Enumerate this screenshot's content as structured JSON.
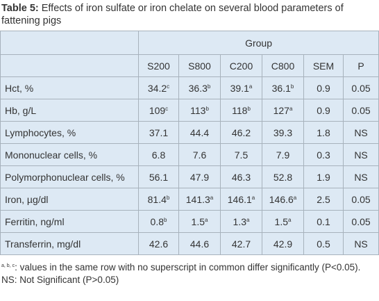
{
  "title": {
    "label": "Table 5:",
    "text": " Effects of iron sulfate or iron chelate on several blood parameters of fattening pigs"
  },
  "table": {
    "group_header": "Group",
    "columns": [
      "S200",
      "S800",
      "C200",
      "C800",
      "SEM",
      "P"
    ],
    "rows": [
      [
        "Hct, %",
        {
          "text": "34.2",
          "sup": "c"
        },
        {
          "text": "36.3",
          "sup": "b"
        },
        {
          "text": "39.1",
          "sup": "a"
        },
        {
          "text": "36.1",
          "sup": "b"
        },
        "0.9",
        "0.05"
      ],
      [
        "Hb, g/L",
        {
          "text": "109",
          "sup": "c"
        },
        {
          "text": "113",
          "sup": "b"
        },
        {
          "text": "118",
          "sup": "b"
        },
        {
          "text": "127",
          "sup": "a"
        },
        "0.9",
        "0.05"
      ],
      [
        "Lymphocytes, %",
        "37.1",
        "44.4",
        "46.2",
        "39.3",
        "1.8",
        "NS"
      ],
      [
        "Mononuclear cells, %",
        "6.8",
        "7.6",
        "7.5",
        "7.9",
        "0.3",
        "NS"
      ],
      [
        "Polymorphonuclear cells, %",
        "56.1",
        "47.9",
        "46.3",
        "52.8",
        "1.9",
        "NS"
      ],
      [
        "Iron, µg/dl",
        {
          "text": "81.4",
          "sup": "b"
        },
        {
          "text": "141.3",
          "sup": "a"
        },
        {
          "text": "146.1",
          "sup": "a"
        },
        {
          "text": "146.6",
          "sup": "a"
        },
        "2.5",
        "0.05"
      ],
      [
        "Ferritin, ng/ml",
        {
          "text": "0.8",
          "sup": "b"
        },
        {
          "text": "1.5",
          "sup": "a"
        },
        {
          "text": "1.3",
          "sup": "a"
        },
        {
          "text": "1.5",
          "sup": "a"
        },
        "0.1",
        "0.05"
      ],
      [
        "Transferrin, mg/dl",
        "42.6",
        "44.6",
        "42.7",
        "42.9",
        "0.5",
        "NS"
      ]
    ]
  },
  "notes": [
    {
      "sup": "a, b, c",
      "text": ": values in the same row with no superscript in common differ significantly (P<0.05)."
    },
    {
      "text": "NS: Not Significant (P>0.05)"
    }
  ]
}
